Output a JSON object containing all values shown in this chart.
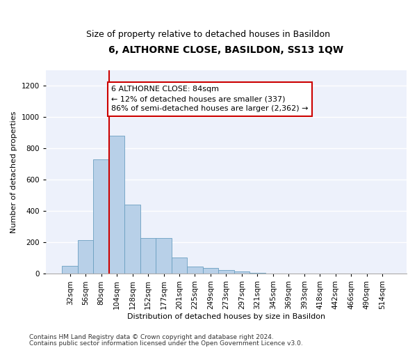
{
  "title": "6, ALTHORNE CLOSE, BASILDON, SS13 1QW",
  "subtitle": "Size of property relative to detached houses in Basildon",
  "xlabel": "Distribution of detached houses by size in Basildon",
  "ylabel": "Number of detached properties",
  "categories": [
    "32sqm",
    "56sqm",
    "80sqm",
    "104sqm",
    "128sqm",
    "152sqm",
    "177sqm",
    "201sqm",
    "225sqm",
    "249sqm",
    "273sqm",
    "297sqm",
    "321sqm",
    "345sqm",
    "369sqm",
    "393sqm",
    "418sqm",
    "442sqm",
    "466sqm",
    "490sqm",
    "514sqm"
  ],
  "values": [
    50,
    215,
    730,
    880,
    440,
    230,
    230,
    105,
    45,
    35,
    25,
    15,
    5,
    0,
    0,
    0,
    0,
    0,
    0,
    0,
    0
  ],
  "bar_color": "#b8d0e8",
  "bar_edge_color": "#6a9fc0",
  "vline_color": "#cc0000",
  "annotation_text": "6 ALTHORNE CLOSE: 84sqm\n← 12% of detached houses are smaller (337)\n86% of semi-detached houses are larger (2,362) →",
  "annotation_box_color": "#ffffff",
  "annotation_box_edge": "#cc0000",
  "ylim": [
    0,
    1300
  ],
  "yticks": [
    0,
    200,
    400,
    600,
    800,
    1000,
    1200
  ],
  "background_color": "#edf1fb",
  "grid_color": "#ffffff",
  "footer_line1": "Contains HM Land Registry data © Crown copyright and database right 2024.",
  "footer_line2": "Contains public sector information licensed under the Open Government Licence v3.0.",
  "title_fontsize": 10,
  "subtitle_fontsize": 9,
  "axis_label_fontsize": 8,
  "tick_fontsize": 7.5,
  "annotation_fontsize": 8,
  "footer_fontsize": 6.5
}
